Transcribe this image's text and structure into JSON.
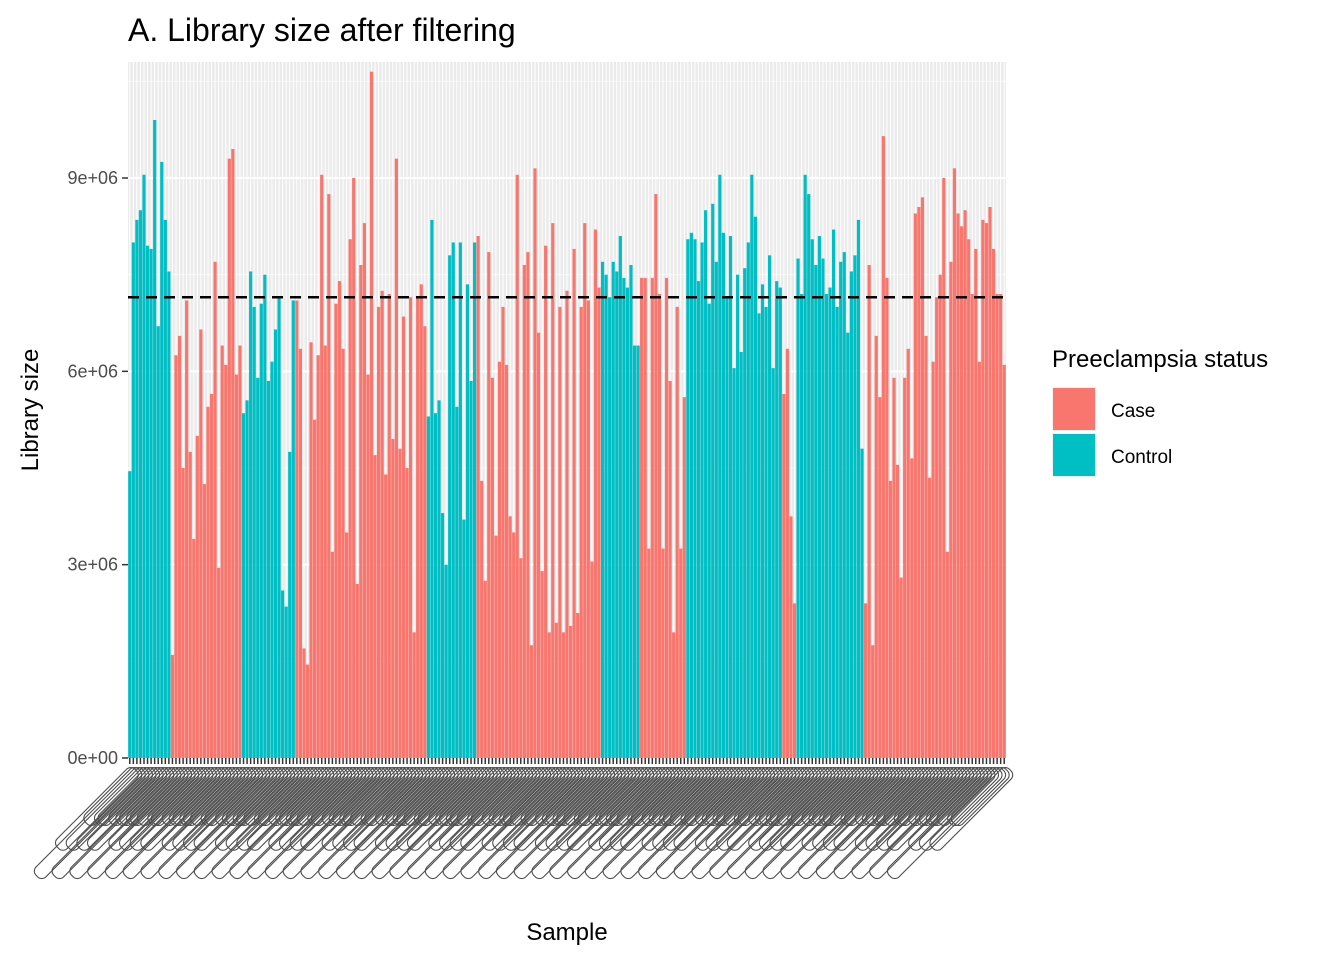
{
  "chart_data": {
    "type": "bar",
    "title": "A. Library size after filtering",
    "xlabel": "Sample",
    "ylabel": "Library size",
    "ylim": [
      0,
      10800000
    ],
    "yticks": [
      0,
      3000000,
      6000000,
      9000000
    ],
    "ytick_labels": [
      "0e+00",
      "3e+06",
      "6e+06",
      "9e+06"
    ],
    "reference_line": {
      "y": 7150000,
      "style": "dashed",
      "color": "#000000"
    },
    "x_tick_labels_legible": false,
    "grid": true,
    "legend": {
      "title": "Preeclampsia status",
      "placement": "right",
      "entries": [
        {
          "name": "Case",
          "color": "#F8766D"
        },
        {
          "name": "Control",
          "color": "#00BFC4"
        }
      ]
    },
    "colors": {
      "Case": "#F8766D",
      "Control": "#00BFC4"
    },
    "groups": [
      {
        "status": "Control",
        "values": [
          4450000,
          8000000,
          8350000,
          8500000,
          9050000,
          7950000,
          7900000,
          9900000,
          6700000,
          9250000,
          8350000,
          7550000
        ]
      },
      {
        "status": "Case",
        "values": [
          1600000,
          6250000,
          6550000,
          4500000,
          7100000,
          4750000,
          3400000,
          5000000,
          6650000,
          4250000,
          5450000,
          5650000,
          7700000,
          2950000,
          6400000,
          6100000,
          9300000,
          9450000,
          5950000,
          6400000
        ]
      },
      {
        "status": "Control",
        "values": [
          5350000,
          5550000,
          7550000,
          7000000,
          5900000,
          7050000,
          7500000,
          5850000,
          6150000,
          6650000,
          7150000,
          2600000,
          2350000,
          4750000,
          7100000
        ]
      },
      {
        "status": "Case",
        "values": [
          7100000,
          6350000,
          1700000,
          1450000,
          6450000,
          5250000,
          6250000,
          9050000,
          6400000,
          8750000,
          3200000,
          7050000,
          7400000,
          6350000,
          3500000,
          8050000,
          9000000,
          2700000,
          7650000,
          8300000,
          5950000,
          10650000,
          4700000,
          7000000,
          7250000,
          4400000,
          7200000,
          4950000,
          9300000,
          4800000,
          6850000,
          4500000,
          7150000,
          1950000,
          7150000,
          7350000,
          6700000
        ]
      },
      {
        "status": "Control",
        "values": [
          5300000,
          8350000,
          5350000,
          5550000,
          3800000,
          3000000,
          7800000,
          8000000,
          5450000,
          8000000,
          3700000,
          7350000,
          5850000,
          8000000
        ]
      },
      {
        "status": "Case",
        "values": [
          8100000,
          4300000,
          2750000,
          7850000,
          5900000,
          3450000,
          6150000,
          7000000,
          6100000,
          3750000,
          3500000,
          9050000,
          3100000,
          7650000,
          7850000,
          1750000,
          9150000,
          6600000,
          2900000,
          7950000,
          1950000,
          8300000,
          2100000,
          7000000,
          1950000,
          7250000,
          2050000,
          7900000,
          2250000,
          7000000,
          8300000,
          7100000,
          3050000,
          8200000,
          7300000
        ]
      },
      {
        "status": "Control",
        "values": [
          7700000,
          7500000,
          7150000,
          7700000,
          7550000,
          8100000,
          7450000,
          7300000,
          7650000,
          6400000,
          6400000
        ]
      },
      {
        "status": "Case",
        "values": [
          7450000,
          7450000,
          3250000,
          7450000,
          8750000,
          7200000,
          3250000,
          7450000,
          5850000,
          1950000,
          7000000,
          3250000,
          5600000
        ]
      },
      {
        "status": "Control",
        "values": [
          8050000,
          8150000,
          8050000,
          7400000,
          8000000,
          8500000,
          7050000,
          8600000,
          7700000,
          9050000,
          8150000,
          7150000,
          8100000,
          6050000,
          7500000,
          6300000,
          7600000,
          8000000,
          9050000,
          8400000,
          6900000,
          7350000,
          7000000,
          7800000,
          6050000,
          7400000,
          7300000
        ]
      },
      {
        "status": "Case",
        "values": [
          5650000,
          6350000,
          3750000,
          2400000
        ]
      },
      {
        "status": "Control",
        "values": [
          7750000,
          7200000,
          9050000,
          8750000,
          8050000,
          7650000,
          8100000,
          7750000,
          7200000,
          7300000,
          8200000,
          7000000,
          7700000,
          7850000,
          6600000,
          7550000,
          7800000,
          8350000,
          4800000
        ]
      },
      {
        "status": "Case",
        "values": [
          2400000,
          7650000,
          1750000,
          6550000,
          5600000,
          9650000,
          7450000,
          4300000,
          5900000,
          4550000,
          2800000,
          5900000,
          6350000,
          4650000,
          8450000,
          8550000,
          8700000,
          6550000,
          4350000,
          6150000,
          7150000,
          7500000,
          9000000,
          3200000,
          7700000,
          9150000,
          8450000,
          8250000,
          8500000,
          8050000,
          7200000,
          7900000
        ]
      },
      {
        "status": "Case",
        "values": [
          6150000,
          8350000,
          8300000,
          8550000,
          7900000,
          7200000,
          7200000,
          6100000
        ]
      }
    ]
  }
}
